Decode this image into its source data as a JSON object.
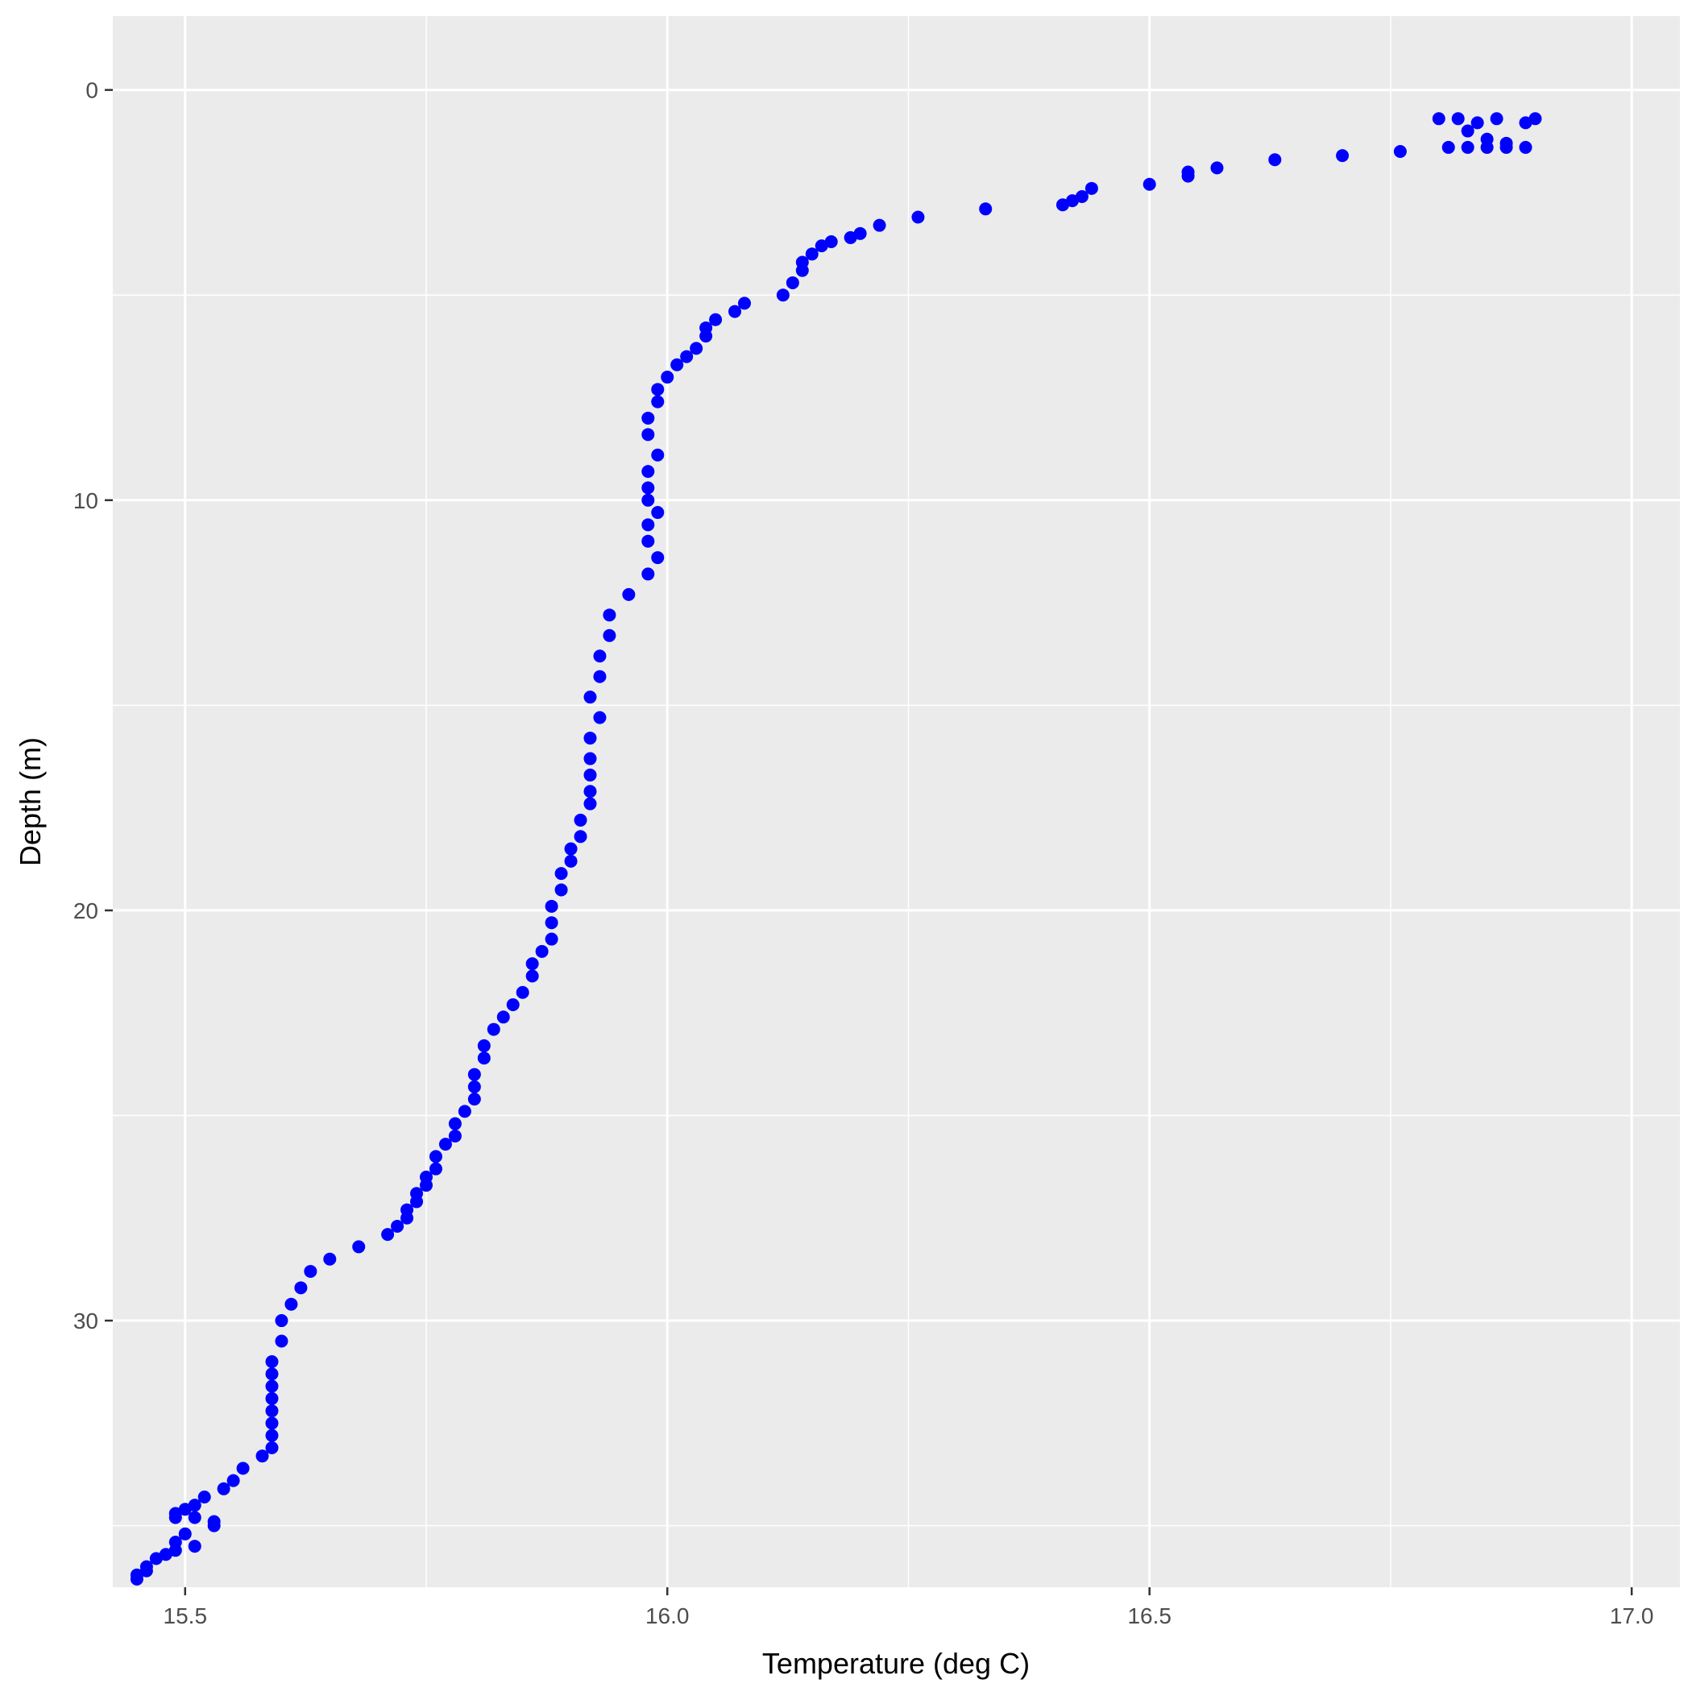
{
  "chart_data": {
    "type": "scatter",
    "xlabel": "Temperature (deg C)",
    "ylabel": "Depth (m)",
    "xlim": [
      15.425,
      17.05
    ],
    "ylim": [
      36.5,
      -1.8
    ],
    "y_reversed": true,
    "x_ticks": [
      "15.5",
      "16.0",
      "16.5",
      "17.0"
    ],
    "y_ticks": [
      "0",
      "10",
      "20",
      "30"
    ],
    "x_tick_values": [
      15.5,
      16.0,
      16.5,
      17.0
    ],
    "y_tick_values": [
      0,
      10,
      20,
      30
    ],
    "grid": true,
    "colors": {
      "panel": "#EBEBEB",
      "grid": "#FFFFFF",
      "point": "#0000FF"
    },
    "series": [
      {
        "x": [
          16.8,
          16.82,
          16.84,
          16.86,
          16.89,
          16.9,
          16.83,
          16.85,
          16.87,
          16.81,
          16.83,
          16.85,
          16.87,
          16.89,
          16.76,
          16.7,
          16.63,
          16.57,
          16.54,
          16.54,
          16.5,
          16.44,
          16.43,
          16.42,
          16.41,
          16.33,
          16.26,
          16.22,
          16.2,
          16.19,
          16.17,
          16.16,
          16.15,
          16.14,
          16.14,
          16.13,
          16.12,
          16.08,
          16.07,
          16.05,
          16.04,
          16.04,
          16.03,
          16.02,
          16.01,
          16.0,
          15.99,
          15.99,
          15.98,
          15.98,
          15.99,
          15.98,
          15.98,
          15.98,
          15.99,
          15.98,
          15.98,
          15.99,
          15.98,
          15.96,
          15.94,
          15.94,
          15.93,
          15.93,
          15.92,
          15.93,
          15.92,
          15.92,
          15.92,
          15.92,
          15.92,
          15.91,
          15.91,
          15.9,
          15.9,
          15.89,
          15.89,
          15.88,
          15.88,
          15.88,
          15.87,
          15.86,
          15.86,
          15.85,
          15.84,
          15.83,
          15.82,
          15.81,
          15.81,
          15.8,
          15.8,
          15.8,
          15.79,
          15.78,
          15.78,
          15.77,
          15.76,
          15.76,
          15.75,
          15.75,
          15.74,
          15.74,
          15.73,
          15.73,
          15.72,
          15.71,
          15.68,
          15.65,
          15.63,
          15.62,
          15.61,
          15.6,
          15.6,
          15.59,
          15.59,
          15.59,
          15.59,
          15.59,
          15.59,
          15.59,
          15.59,
          15.58,
          15.56,
          15.55,
          15.54,
          15.52,
          15.51,
          15.5,
          15.49,
          15.49,
          15.51,
          15.53,
          15.53,
          15.5,
          15.49,
          15.51,
          15.49,
          15.48,
          15.47,
          15.46,
          15.46,
          15.45,
          15.45
        ],
        "y": [
          0.7,
          0.7,
          0.8,
          0.7,
          0.8,
          0.7,
          1.0,
          1.2,
          1.3,
          1.4,
          1.4,
          1.4,
          1.4,
          1.4,
          1.5,
          1.6,
          1.7,
          1.9,
          2.0,
          2.1,
          2.3,
          2.4,
          2.6,
          2.7,
          2.8,
          2.9,
          3.1,
          3.3,
          3.5,
          3.6,
          3.7,
          3.8,
          4.0,
          4.2,
          4.4,
          4.7,
          5.0,
          5.2,
          5.4,
          5.6,
          5.8,
          6.0,
          6.3,
          6.5,
          6.7,
          7.0,
          7.3,
          7.6,
          8.0,
          8.4,
          8.9,
          9.3,
          9.7,
          10.0,
          10.3,
          10.6,
          11.0,
          11.4,
          11.8,
          12.3,
          12.8,
          13.3,
          13.8,
          14.3,
          14.8,
          15.3,
          15.8,
          16.3,
          16.7,
          17.1,
          17.4,
          17.8,
          18.2,
          18.5,
          18.8,
          19.1,
          19.5,
          19.9,
          20.3,
          20.7,
          21.0,
          21.3,
          21.6,
          22.0,
          22.3,
          22.6,
          22.9,
          23.3,
          23.6,
          24.0,
          24.3,
          24.6,
          24.9,
          25.2,
          25.5,
          25.7,
          26.0,
          26.3,
          26.5,
          26.7,
          26.9,
          27.1,
          27.3,
          27.5,
          27.7,
          27.9,
          28.2,
          28.5,
          28.8,
          29.2,
          29.6,
          30.0,
          30.5,
          31.0,
          31.3,
          31.6,
          31.9,
          32.2,
          32.5,
          32.8,
          33.1,
          33.3,
          33.6,
          33.9,
          34.1,
          34.3,
          34.5,
          34.6,
          34.7,
          34.8,
          34.8,
          34.9,
          35.0,
          35.2,
          35.4,
          35.5,
          35.6,
          35.7,
          35.8,
          36.0,
          36.1,
          36.2,
          36.3
        ]
      }
    ]
  }
}
